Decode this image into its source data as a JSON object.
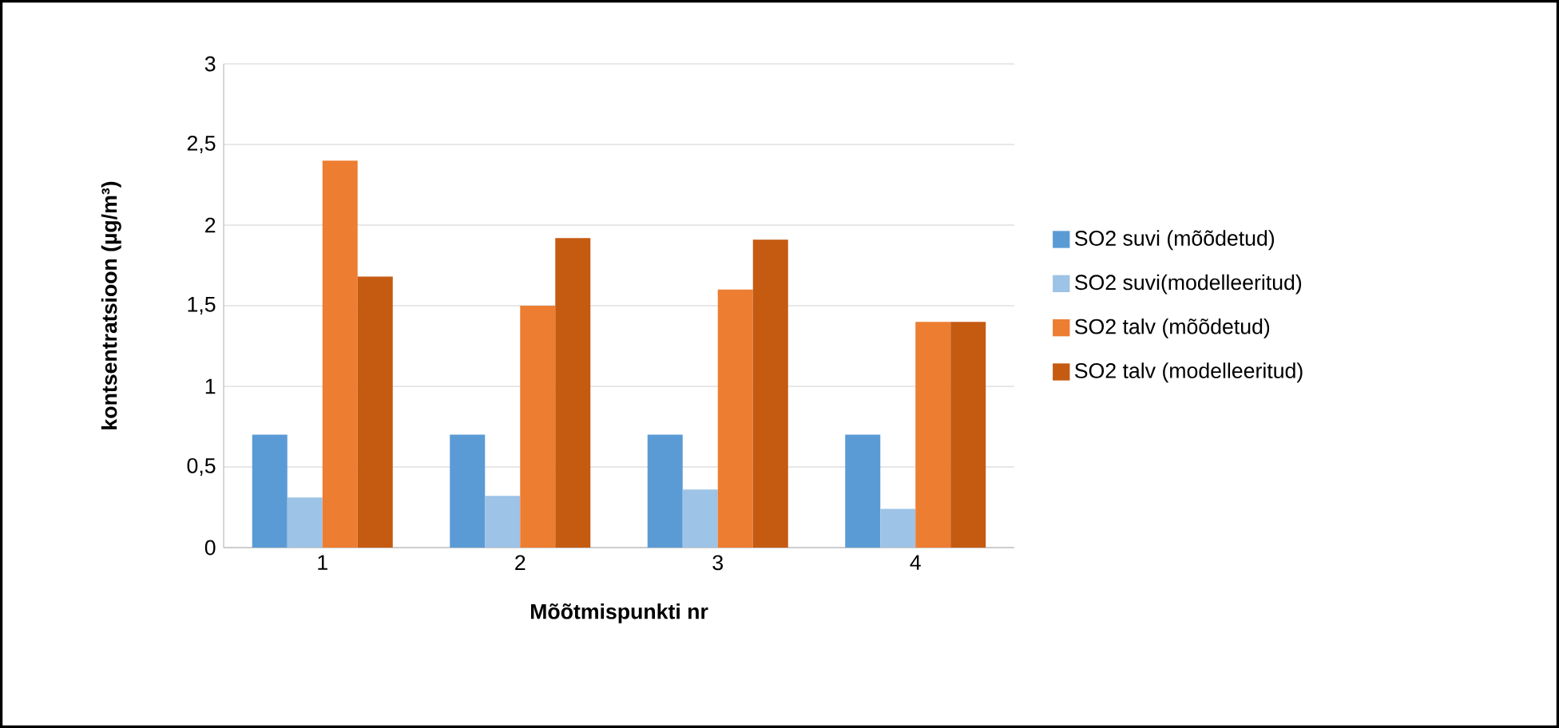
{
  "chart_data": {
    "type": "bar",
    "xlabel": "Mõõtmispunkti nr",
    "ylabel": "kontsentratsioon (µg/m³)",
    "categories": [
      "1",
      "2",
      "3",
      "4"
    ],
    "series": [
      {
        "name": "SO2 suvi (mõõdetud)",
        "color": "#5b9bd5",
        "values": [
          0.7,
          0.7,
          0.7,
          0.7
        ]
      },
      {
        "name": "SO2 suvi(modelleeritud)",
        "color": "#9dc3e6",
        "values": [
          0.31,
          0.32,
          0.36,
          0.24
        ]
      },
      {
        "name": "SO2 talv (mõõdetud)",
        "color": "#ed7d31",
        "values": [
          2.4,
          1.5,
          1.6,
          1.4
        ]
      },
      {
        "name": "SO2 talv (modelleeritud)",
        "color": "#c55a11",
        "values": [
          1.68,
          1.92,
          1.91,
          1.4
        ]
      }
    ],
    "ylim": [
      0,
      3
    ],
    "yticks": [
      0,
      {
        "value": 0.5,
        "label": "0,5"
      },
      1,
      {
        "value": 1.5,
        "label": "1,5"
      },
      2,
      {
        "value": 2.5,
        "label": "2,5"
      },
      3
    ],
    "grid": "y",
    "legend": "right"
  }
}
